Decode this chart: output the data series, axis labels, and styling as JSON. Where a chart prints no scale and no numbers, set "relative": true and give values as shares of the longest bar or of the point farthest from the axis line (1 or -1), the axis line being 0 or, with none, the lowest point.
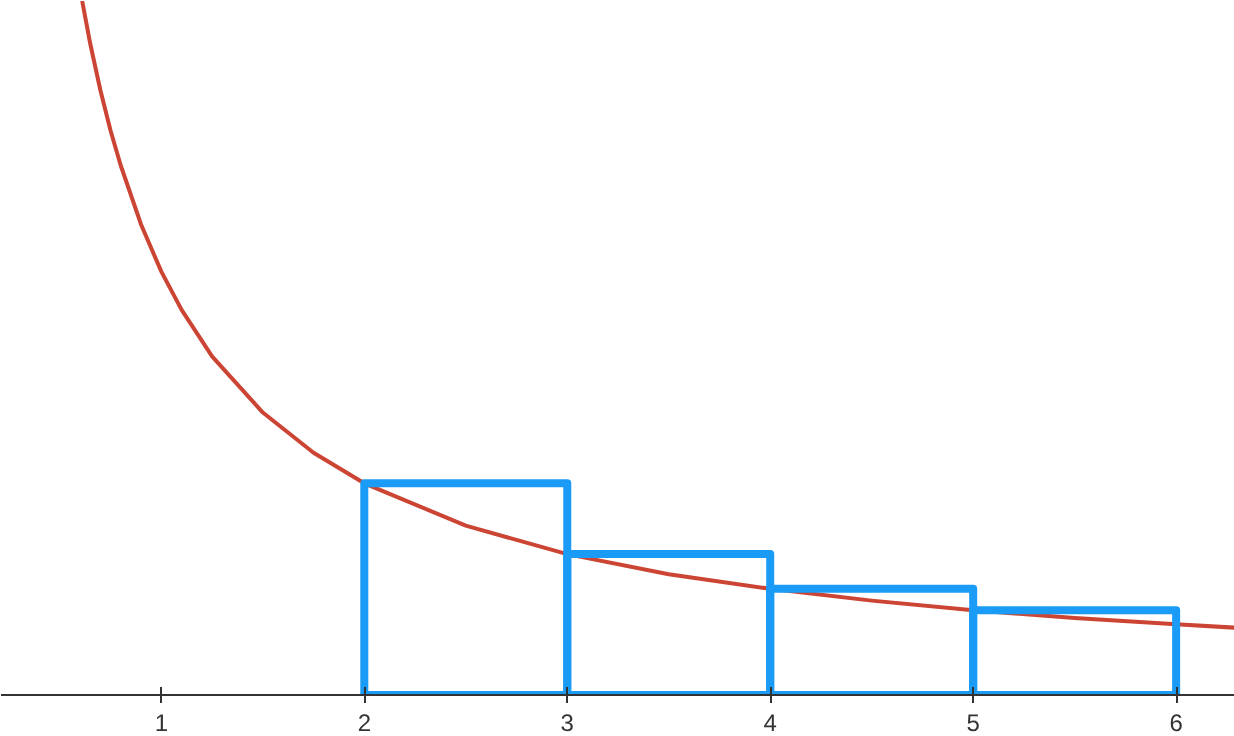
{
  "chart_data": {
    "type": "line",
    "relative": true,
    "xlim": [
      0.21,
      6.29
    ],
    "xticks": [
      1,
      2,
      3,
      4,
      5,
      6
    ],
    "grid": false,
    "tick_labels": "x",
    "series": [
      {
        "color": "#cc4433",
        "x": [
          0.61,
          0.65,
          0.7,
          0.75,
          0.8,
          0.9,
          1.0,
          1.1,
          1.25,
          1.5,
          1.75,
          2,
          2.5,
          3,
          3.5,
          4,
          4.5,
          5,
          5.5,
          6,
          6.29
        ],
        "values": [
          1.0,
          0.938,
          0.871,
          0.813,
          0.763,
          0.678,
          0.61,
          0.555,
          0.488,
          0.407,
          0.349,
          0.305,
          0.244,
          0.203,
          0.174,
          0.153,
          0.136,
          0.122,
          0.111,
          0.102,
          0.097
        ]
      },
      {
        "type": "bar",
        "color": "#1a9bf5",
        "x": [
          2.5,
          3.5,
          4.5,
          5.5
        ],
        "values": [
          0.305,
          0.203,
          0.153,
          0.122
        ]
      }
    ]
  }
}
